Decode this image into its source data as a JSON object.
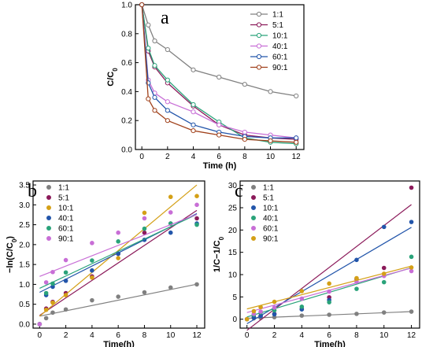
{
  "chart_data": [
    {
      "type": "line",
      "panel_label": "a",
      "xlabel": "Time (h)",
      "ylabel": "C/C0",
      "xlim": [
        -0.5,
        12.6
      ],
      "ylim": [
        0,
        1.0
      ],
      "xticks": [
        0,
        2,
        4,
        6,
        8,
        10,
        12
      ],
      "yticks": [
        0.0,
        0.2,
        0.4,
        0.6,
        0.8,
        1.0
      ],
      "ytick_decimals": 1,
      "grid": false,
      "legend_position": "top-right",
      "x": [
        0,
        0.5,
        1,
        2,
        4,
        6,
        8,
        10,
        12
      ],
      "series": [
        {
          "name": "1:1",
          "color": "#808080",
          "marker": "circle",
          "values": [
            1.0,
            0.86,
            0.75,
            0.69,
            0.55,
            0.5,
            0.45,
            0.4,
            0.37
          ]
        },
        {
          "name": "5:1",
          "color": "#8b1a5a",
          "marker": "circle",
          "values": [
            1.0,
            0.68,
            0.57,
            0.46,
            0.3,
            0.17,
            0.1,
            0.08,
            0.07
          ]
        },
        {
          "name": "10:1",
          "color": "#2aa37a",
          "marker": "circle",
          "values": [
            1.0,
            0.7,
            0.58,
            0.48,
            0.31,
            0.19,
            0.08,
            0.05,
            0.04
          ]
        },
        {
          "name": "40:1",
          "color": "#c86ed6",
          "marker": "circle",
          "values": [
            1.0,
            0.48,
            0.39,
            0.33,
            0.26,
            0.17,
            0.12,
            0.1,
            0.08
          ]
        },
        {
          "name": "60:1",
          "color": "#2255aa",
          "marker": "circle",
          "values": [
            1.0,
            0.46,
            0.36,
            0.27,
            0.17,
            0.12,
            0.09,
            0.08,
            0.08
          ]
        },
        {
          "name": "90:1",
          "color": "#a0401a",
          "marker": "circle",
          "values": [
            1.0,
            0.35,
            0.27,
            0.2,
            0.13,
            0.1,
            0.07,
            0.06,
            0.05
          ]
        }
      ]
    },
    {
      "type": "scatter",
      "panel_label": "b",
      "xlabel": "Time(h)",
      "ylabel": "−ln(C/C0)",
      "xlim": [
        -0.5,
        12.6
      ],
      "ylim": [
        -0.1,
        3.6
      ],
      "xticks": [
        0,
        2,
        4,
        6,
        8,
        10,
        12
      ],
      "yticks": [
        0.0,
        0.5,
        1.0,
        1.5,
        2.0,
        2.5,
        3.0,
        3.5
      ],
      "ytick_decimals": 1,
      "grid": false,
      "legend_position": "top-left",
      "x": [
        0,
        0.5,
        1,
        2,
        4,
        6,
        8,
        10,
        12
      ],
      "series": [
        {
          "name": "1:1",
          "color": "#808080",
          "values": [
            0.0,
            0.15,
            0.29,
            0.37,
            0.6,
            0.69,
            0.8,
            0.92,
            1.0
          ],
          "fit": [
            0.2,
            0.067
          ]
        },
        {
          "name": "5:1",
          "color": "#8b1a5a",
          "values": [
            0.0,
            0.39,
            0.56,
            0.78,
            1.2,
            1.77,
            2.3,
            2.53,
            2.66
          ],
          "fit": [
            0.22,
            0.22
          ]
        },
        {
          "name": "10:1",
          "color": "#d4a017",
          "values": [
            0.0,
            0.36,
            0.54,
            0.73,
            1.17,
            1.66,
            2.8,
            3.2,
            3.22
          ],
          "fit": [
            0.2,
            0.275
          ]
        },
        {
          "name": "40:1",
          "color": "#2255aa",
          "values": [
            0.0,
            0.73,
            0.94,
            1.09,
            1.35,
            1.77,
            2.12,
            2.3,
            2.53
          ],
          "fit": [
            0.8,
            0.165
          ]
        },
        {
          "name": "60:1",
          "color": "#2aa37a",
          "values": [
            0.0,
            0.78,
            1.02,
            1.3,
            1.6,
            2.08,
            2.4,
            2.53,
            2.5
          ],
          "fit": [
            0.9,
            0.155
          ]
        },
        {
          "name": "90:1",
          "color": "#c86ed6",
          "values": [
            0.0,
            1.05,
            1.31,
            1.61,
            2.04,
            2.3,
            2.66,
            2.81,
            3.0
          ],
          "fit": [
            1.2,
            0.13
          ]
        }
      ]
    },
    {
      "type": "scatter",
      "panel_label": "c",
      "xlabel": "Time(h)",
      "ylabel": "1/C−1/C0",
      "xlim": [
        -0.5,
        12.6
      ],
      "ylim": [
        -2,
        31
      ],
      "xticks": [
        0,
        2,
        4,
        6,
        8,
        10,
        12
      ],
      "yticks": [
        0,
        5,
        10,
        15,
        20,
        25,
        30
      ],
      "ytick_decimals": 0,
      "grid": false,
      "legend_position": "top-left",
      "x": [
        0,
        0.5,
        1,
        2,
        4,
        6,
        8,
        10,
        12
      ],
      "series": [
        {
          "name": "1:1",
          "color": "#808080",
          "values": [
            0.0,
            0.2,
            0.3,
            0.45,
            0.8,
            1.0,
            1.2,
            1.5,
            1.7
          ],
          "fit": [
            0.2,
            0.125
          ]
        },
        {
          "name": "5:1",
          "color": "#8b1a5a",
          "values": [
            0.0,
            0.5,
            0.8,
            1.2,
            2.3,
            4.9,
            9.0,
            11.5,
            29.5
          ],
          "fit": [
            -2.5,
            2.35
          ]
        },
        {
          "name": "10:1",
          "color": "#2255aa",
          "values": [
            0.0,
            0.4,
            0.7,
            1.1,
            2.2,
            4.3,
            13.3,
            20.7,
            21.8
          ],
          "fit": [
            -1.0,
            1.8
          ]
        },
        {
          "name": "40:1",
          "color": "#2aa37a",
          "values": [
            0.0,
            1.0,
            1.5,
            2.0,
            2.8,
            3.8,
            6.8,
            8.3,
            14.0
          ],
          "fit": [
            0.5,
            0.92
          ]
        },
        {
          "name": "60:1",
          "color": "#c86ed6",
          "values": [
            0.0,
            1.2,
            1.7,
            2.6,
            4.6,
            6.2,
            8.4,
            9.7,
            10.8
          ],
          "fit": [
            1.5,
            0.83
          ]
        },
        {
          "name": "90:1",
          "color": "#d4a017",
          "values": [
            0.0,
            1.8,
            2.7,
            3.9,
            6.3,
            8.0,
            9.2,
            10.2,
            11.6
          ],
          "fit": [
            2.3,
            0.8
          ]
        }
      ]
    }
  ]
}
